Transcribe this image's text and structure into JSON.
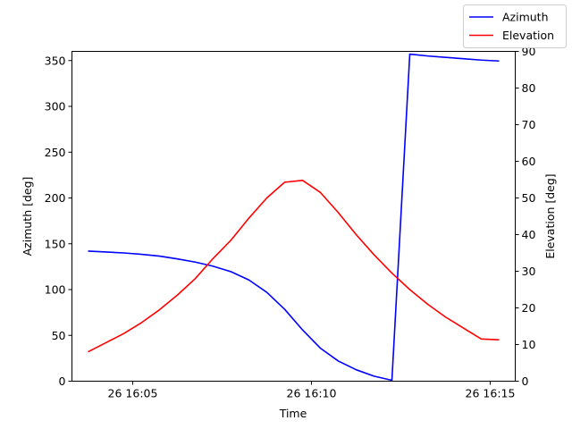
{
  "chart_data": {
    "type": "line",
    "title": "",
    "xlabel": "Time",
    "ylabel_left": "Azimuth [deg]",
    "ylabel_right": "Elevation [deg]",
    "x_ticks": [
      {
        "label": "26 16:05",
        "minute": 5
      },
      {
        "label": "26 16:10",
        "minute": 10
      },
      {
        "label": "26 16:15",
        "minute": 15
      }
    ],
    "xlim_minutes": [
      3.3,
      15.7
    ],
    "ylim_left": [
      0,
      360
    ],
    "yticks_left": [
      "0",
      "50",
      "100",
      "150",
      "200",
      "250",
      "300",
      "350"
    ],
    "ylim_right": [
      0,
      90
    ],
    "yticks_right": [
      "0",
      "10",
      "20",
      "30",
      "40",
      "50",
      "60",
      "70",
      "80",
      "90"
    ],
    "legend_position": "top-right",
    "grid": false,
    "x_minutes": [
      3.75,
      4.25,
      4.75,
      5.25,
      5.75,
      6.25,
      6.75,
      7.25,
      7.75,
      8.25,
      8.75,
      9.25,
      9.75,
      10.25,
      10.75,
      11.25,
      11.75,
      12.25,
      12.75,
      13.25,
      13.75,
      14.25,
      14.75,
      15.25
    ],
    "series": [
      {
        "name": "Azimuth",
        "axis": "left",
        "color": "#0000ff",
        "values": [
          142,
          141,
          140,
          138.5,
          136.5,
          133.5,
          130,
          125.5,
          119.5,
          110.5,
          97,
          78.5,
          56,
          36,
          22,
          12.5,
          5.5,
          1,
          357,
          355,
          353.5,
          352,
          350.5,
          349.5
        ]
      },
      {
        "name": "Elevation",
        "axis": "right",
        "color": "#ff0000",
        "values": [
          8,
          10.5,
          13,
          16,
          19.5,
          23.5,
          28,
          33.5,
          38.5,
          44.5,
          50,
          54.3,
          54.8,
          51.5,
          46,
          40,
          34.5,
          29.5,
          25,
          21,
          17.5,
          14.5,
          11.5,
          11.3
        ]
      }
    ]
  }
}
